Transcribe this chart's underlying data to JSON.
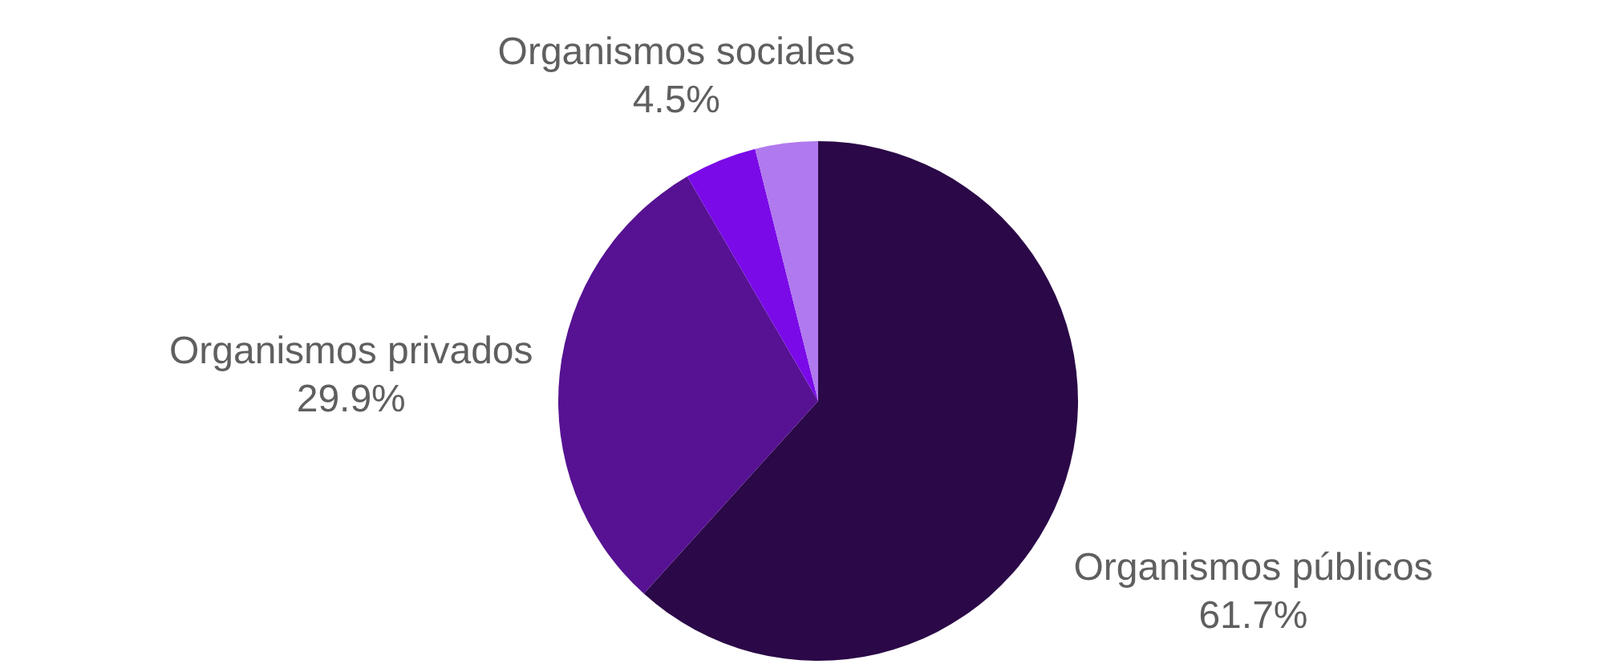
{
  "chart_data": {
    "type": "pie",
    "categories": [
      "Organismos públicos",
      "Organismos privados",
      "Organismos sociales",
      null
    ],
    "values": [
      61.7,
      29.9,
      4.5,
      3.9
    ],
    "value_labels": [
      "61.7%",
      "29.9%",
      "4.5%",
      null
    ],
    "colors": [
      "#2b0847",
      "#561292",
      "#7a0ae8",
      "#b079ee"
    ]
  }
}
